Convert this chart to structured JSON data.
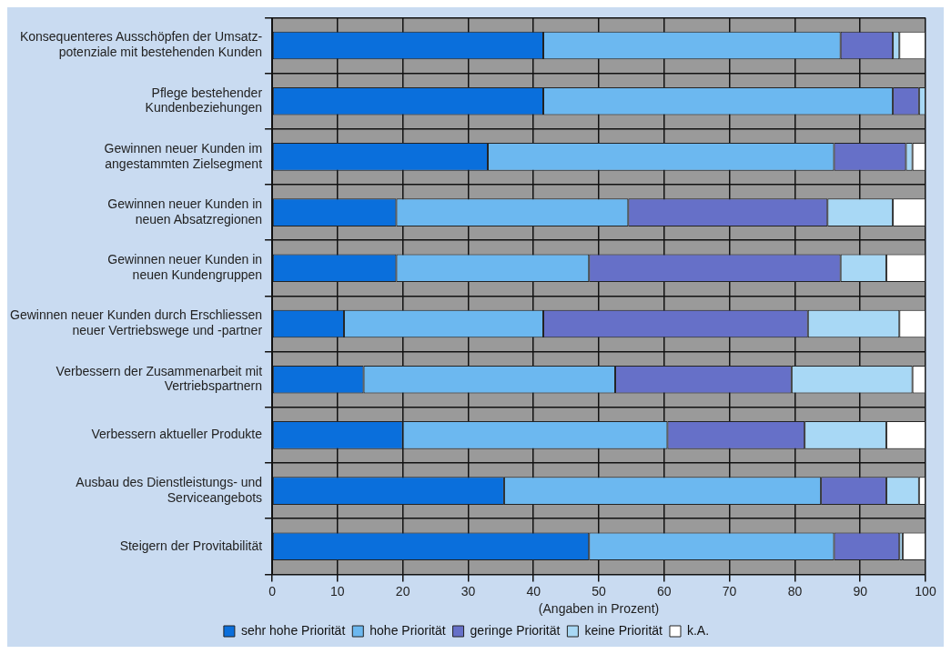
{
  "chart_data": {
    "type": "bar",
    "orientation": "horizontal",
    "stacked": true,
    "xlabel": "(Angaben in Prozent)",
    "categories": [
      "Konsequenteres Ausschöpfen der Umsatz-\npotenziale mit bestehenden Kunden",
      "Pflege bestehender\nKundenbeziehungen",
      "Gewinnen neuer Kunden im\nangestammten Zielsegment",
      "Gewinnen neuer Kunden in\nneuen Absatzregionen",
      "Gewinnen neuer Kunden in\nneuen Kundengruppen",
      "Gewinnen neuer Kunden durch Erschliessen\nneuer Vertriebswege und -partner",
      "Verbessern der Zusammenarbeit mit\nVertriebspartnern",
      "Verbessern aktueller Produkte",
      "Ausbau des Dienstleistungs- und\nServiceangebots",
      "Steigern der Provitabilität"
    ],
    "series": [
      {
        "name": "sehr hohe Priorität",
        "color": "#0a6fdc",
        "values": [
          41.5,
          41.5,
          33,
          19,
          19,
          11,
          14,
          20,
          35.5,
          48.5
        ]
      },
      {
        "name": "hohe Priorität",
        "color": "#6cb8f0",
        "values": [
          45.5,
          53.5,
          53,
          35.5,
          29.5,
          30.5,
          38.5,
          40.5,
          48.5,
          37.5
        ]
      },
      {
        "name": "geringe Priorität",
        "color": "#6670c8",
        "values": [
          8,
          4,
          11,
          30.5,
          38.5,
          40.5,
          27,
          21,
          10,
          10
        ]
      },
      {
        "name": "keine Priorität",
        "color": "#a8d8f5",
        "values": [
          1,
          1,
          1,
          10,
          7,
          14,
          18.5,
          12.5,
          5,
          0.5
        ]
      },
      {
        "name": "k.A.",
        "color": "#ffffff",
        "values": [
          4,
          0,
          2,
          5,
          6,
          4,
          2,
          6,
          1,
          3.5
        ]
      }
    ],
    "xlim": [
      0,
      100
    ],
    "xticks": [
      0,
      10,
      20,
      30,
      40,
      50,
      60,
      70,
      80,
      90,
      100
    ],
    "grid": true,
    "legend": "bottom"
  }
}
